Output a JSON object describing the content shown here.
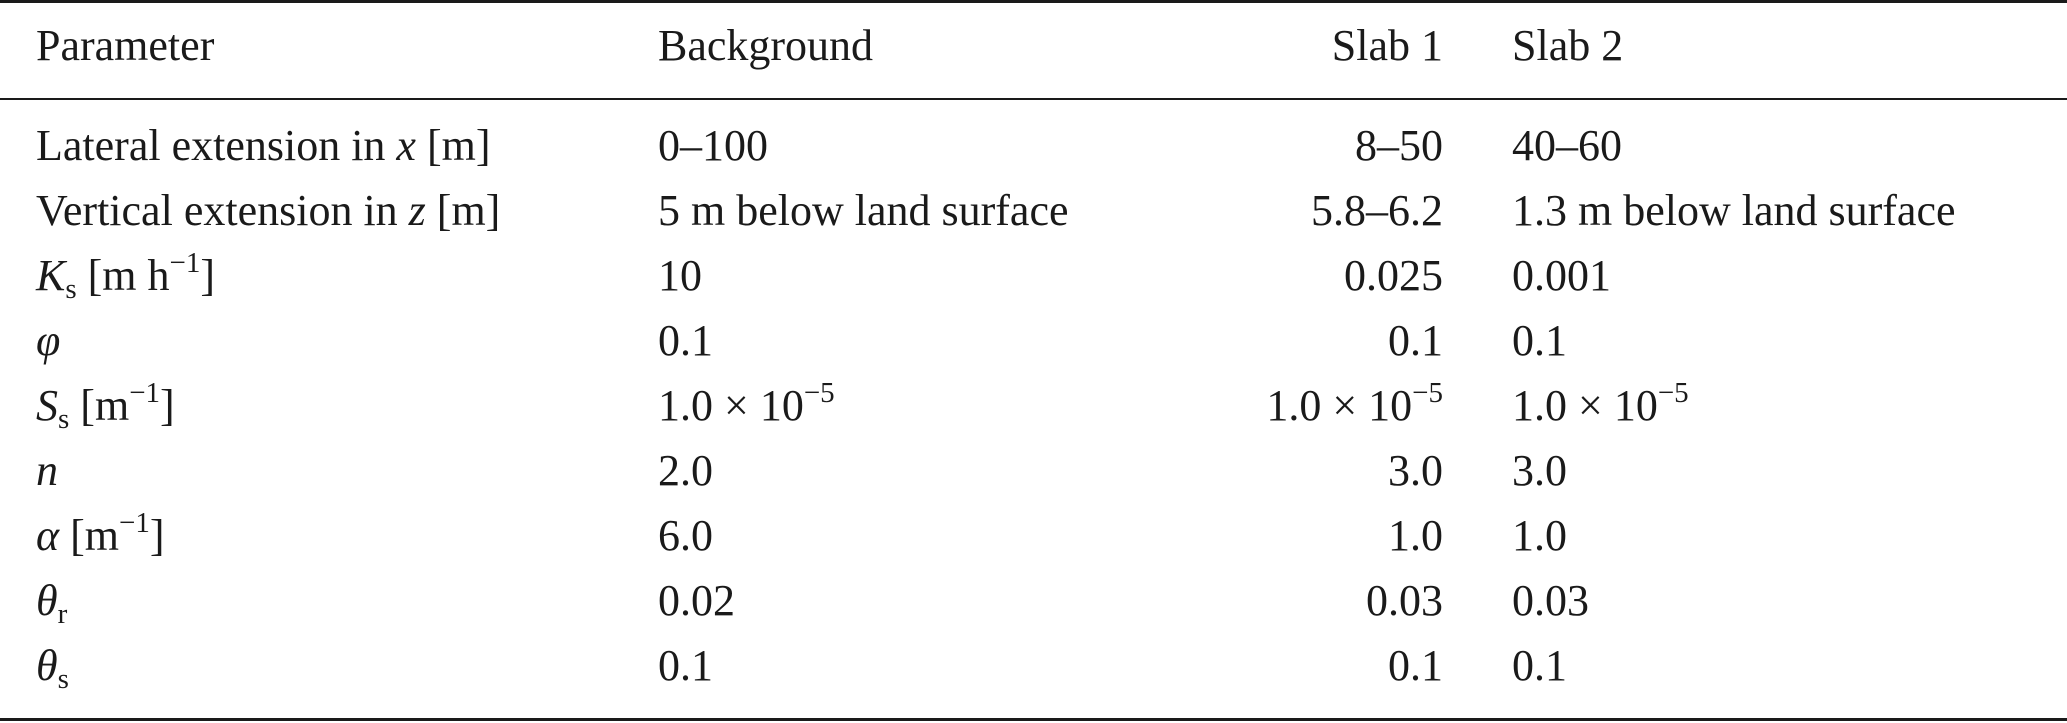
{
  "table": {
    "headers": [
      "Parameter",
      "Background",
      "Slab 1",
      "Slab 2"
    ],
    "rows": [
      {
        "param_pre": "Lateral extension in ",
        "param_var": "x",
        "param_post": " [m]",
        "background": "0–100",
        "slab1": "8–50",
        "slab2": "40–60"
      },
      {
        "param_pre": "Vertical extension in ",
        "param_var": "z",
        "param_post": " [m]",
        "background": "5 m below land surface",
        "slab1": "5.8–6.2",
        "slab2": "1.3 m below land surface"
      },
      {
        "param_var": "K",
        "param_sub": "s",
        "param_unit": " [m h",
        "param_sup": "−1",
        "param_close": "]",
        "background": "10",
        "slab1": "0.025",
        "slab2": "0.001"
      },
      {
        "param_var": "φ",
        "background": "0.1",
        "slab1": "0.1",
        "slab2": "0.1"
      },
      {
        "param_var": "S",
        "param_sub": "s",
        "param_unit": " [m",
        "param_sup": "−1",
        "param_close": "]",
        "background_base": "1.0 × 10",
        "background_exp": "−5",
        "slab1_base": "1.0 × 10",
        "slab1_exp": "−5",
        "slab2_base": "1.0 × 10",
        "slab2_exp": "−5"
      },
      {
        "param_var": "n",
        "background": "2.0",
        "slab1": "3.0",
        "slab2": "3.0"
      },
      {
        "param_var": "α",
        "param_unit": " [m",
        "param_sup": "−1",
        "param_close": "]",
        "background": "6.0",
        "slab1": "1.0",
        "slab2": "1.0"
      },
      {
        "param_var": "θ",
        "param_sub": "r",
        "background": "0.02",
        "slab1": "0.03",
        "slab2": "0.03"
      },
      {
        "param_var": "θ",
        "param_sub": "s",
        "background": "0.1",
        "slab1": "0.1",
        "slab2": "0.1"
      }
    ]
  }
}
